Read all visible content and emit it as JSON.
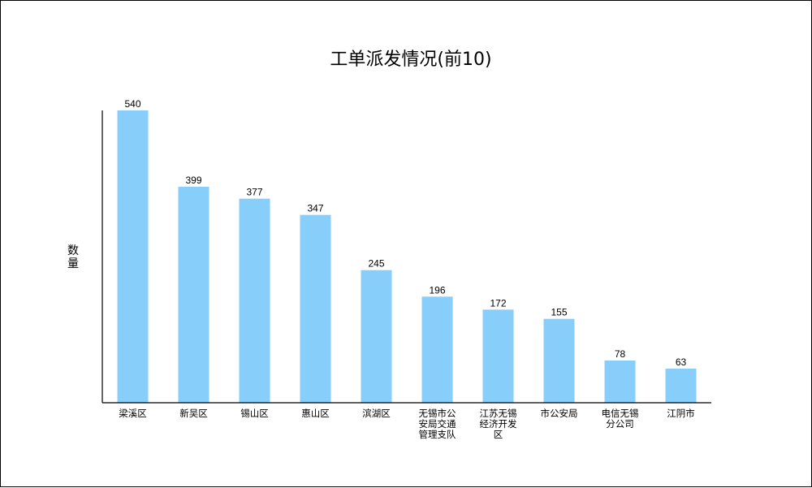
{
  "chart_data": {
    "type": "bar",
    "title": "工单派发情况(前10)",
    "ylabel": "数量",
    "xlabel": "",
    "categories": [
      "梁溪区",
      "新吴区",
      "锡山区",
      "惠山区",
      "滨湖区",
      "无锡市公安局交通管理支队",
      "江苏无锡经济开发区",
      "市公安局",
      "电信无锡分公司",
      "江阴市"
    ],
    "values": [
      540,
      399,
      377,
      347,
      245,
      196,
      172,
      155,
      78,
      63
    ],
    "ylim": [
      0,
      540
    ],
    "grid": false,
    "legend": "none",
    "bar_color": "#87CEFA"
  }
}
